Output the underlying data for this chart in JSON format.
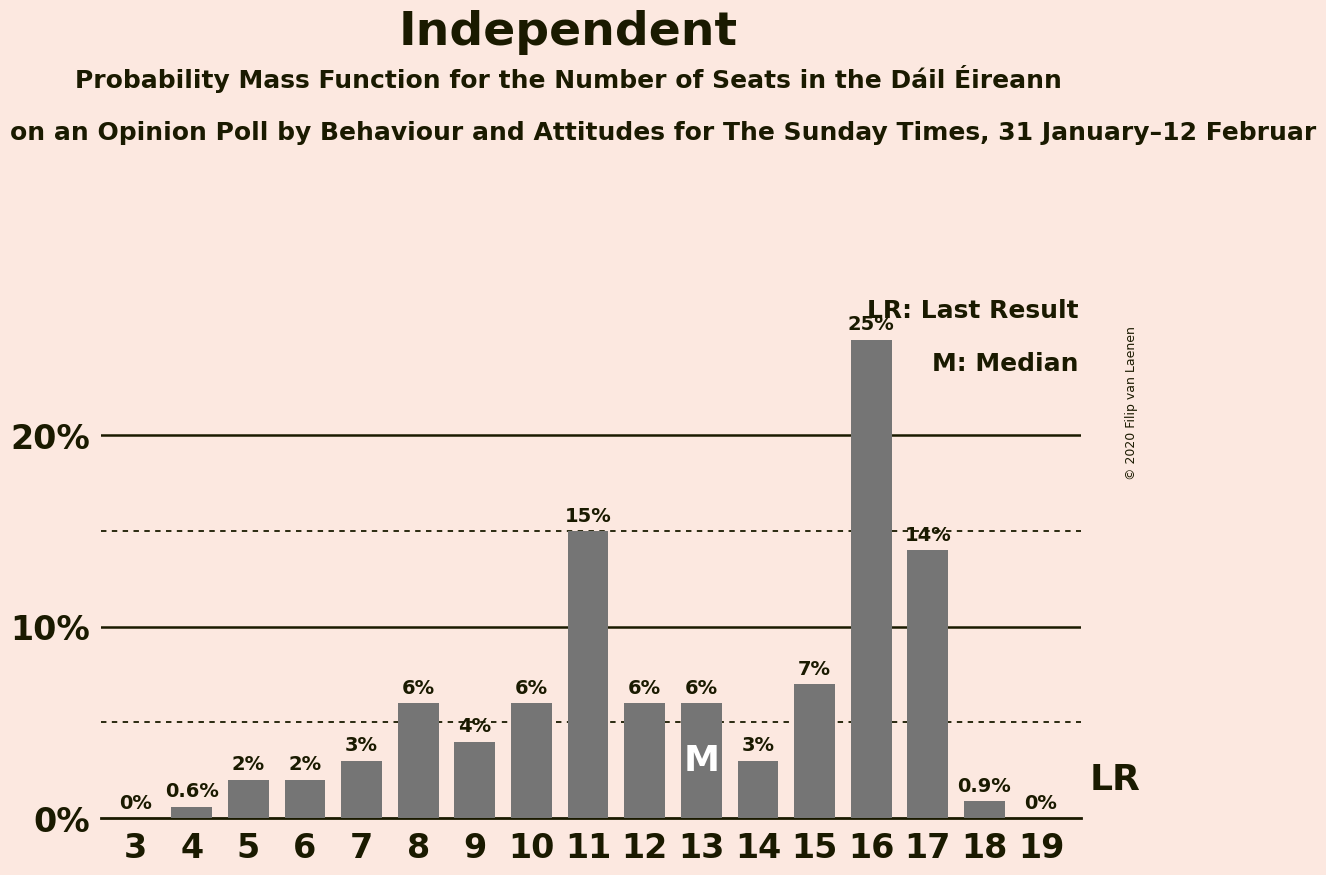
{
  "title": "Independent",
  "subtitle1": "Probability Mass Function for the Number of Seats in the Dáil Éireann",
  "subtitle2": "on an Opinion Poll by Behaviour and Attitudes for The Sunday Times, 31 January–12 Februar",
  "copyright": "© 2020 Filip van Laenen",
  "categories": [
    3,
    4,
    5,
    6,
    7,
    8,
    9,
    10,
    11,
    12,
    13,
    14,
    15,
    16,
    17,
    18,
    19
  ],
  "values": [
    0,
    0.6,
    2,
    2,
    3,
    6,
    4,
    6,
    15,
    6,
    6,
    3,
    7,
    25,
    14,
    0.9,
    0
  ],
  "bar_color": "#757575",
  "background_color": "#fce8e0",
  "text_color": "#1a1a00",
  "yticks": [
    0,
    10,
    20
  ],
  "solid_lines": [
    10,
    20
  ],
  "dotted_lines": [
    5,
    15
  ],
  "median_seat": 13,
  "last_result_seat": 19,
  "legend_lr": "LR: Last Result",
  "legend_m": "M: Median",
  "lr_label": "LR",
  "m_label": "M",
  "ylim": [
    0,
    28
  ],
  "title_fontsize": 34,
  "subtitle1_fontsize": 18,
  "subtitle2_fontsize": 18,
  "ytick_fontsize": 24,
  "xtick_fontsize": 24,
  "bar_label_fontsize": 14,
  "legend_fontsize": 18,
  "m_label_fontsize": 26,
  "lr_label_fontsize": 26
}
